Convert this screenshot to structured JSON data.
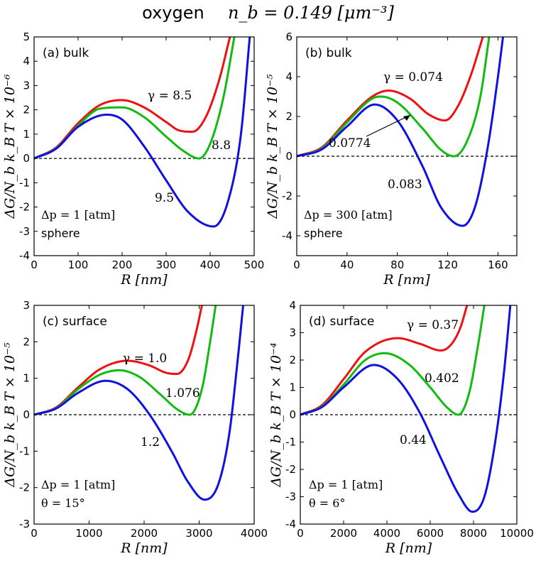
{
  "figure": {
    "title_word": "oxygen",
    "title_math": "n_b = 0.149 [μm⁻³]"
  },
  "colors": {
    "red": "#ee1111",
    "green": "#11bb11",
    "blue": "#1111dd",
    "zero_line": "#000000"
  },
  "chart_data": [
    {
      "type": "line",
      "panel": "a",
      "panel_label": "(a) bulk",
      "xlabel": "R [nm]",
      "ylabel": "ΔG/N_b k_B T × 10⁻⁶",
      "xlim": [
        0,
        500
      ],
      "ylim": [
        -4,
        5
      ],
      "xticks": [
        0,
        100,
        200,
        300,
        400,
        500
      ],
      "yticks": [
        -4,
        -3,
        -2,
        -1,
        0,
        1,
        2,
        3,
        4,
        5
      ],
      "annotations": [
        "Δp = 1 [atm]",
        "sphere"
      ],
      "curve_labels": [
        "γ = 8.5",
        "8.8",
        "9.5"
      ],
      "series": [
        {
          "label_text": "γ = 8.5",
          "color": "red",
          "x": [
            0,
            50,
            100,
            150,
            200,
            250,
            300,
            330,
            360,
            390,
            420,
            445
          ],
          "values": [
            0,
            0.45,
            1.45,
            2.2,
            2.4,
            2.1,
            1.5,
            1.15,
            1.1,
            1.7,
            3.2,
            5.0
          ]
        },
        {
          "label_text": "8.8",
          "color": "green",
          "x": [
            0,
            50,
            100,
            150,
            200,
            250,
            300,
            340,
            375,
            400,
            430,
            455
          ],
          "values": [
            0,
            0.42,
            1.35,
            2.05,
            2.1,
            1.7,
            0.9,
            0.3,
            0.0,
            0.6,
            2.5,
            5.0
          ]
        },
        {
          "label_text": "9.5",
          "color": "blue",
          "x": [
            0,
            50,
            100,
            165,
            200,
            250,
            300,
            350,
            408,
            440,
            470,
            490
          ],
          "values": [
            0,
            0.4,
            1.3,
            1.8,
            1.6,
            0.5,
            -0.9,
            -2.2,
            -2.8,
            -1.8,
            1.0,
            5.0
          ]
        }
      ]
    },
    {
      "type": "line",
      "panel": "b",
      "panel_label": "(b) bulk",
      "xlabel": "R [nm]",
      "ylabel": "ΔG/N_b k_B T × 10⁻⁵",
      "xlim": [
        0,
        175
      ],
      "ylim": [
        -5,
        6
      ],
      "xticks": [
        0,
        40,
        80,
        120,
        160
      ],
      "yticks": [
        -4,
        -2,
        0,
        2,
        4,
        6
      ],
      "annotations": [
        "Δp = 300 [atm]",
        "sphere"
      ],
      "curve_labels": [
        "γ = 0.074",
        "0.0774",
        "0.083"
      ],
      "series": [
        {
          "label_text": "γ = 0.074",
          "color": "red",
          "x": [
            0,
            20,
            40,
            60,
            73,
            90,
            105,
            118,
            128,
            138,
            148
          ],
          "values": [
            0,
            0.45,
            1.8,
            3.0,
            3.3,
            2.9,
            2.1,
            1.8,
            2.5,
            4.0,
            6.0
          ]
        },
        {
          "label_text": "0.0774",
          "color": "green",
          "x": [
            0,
            20,
            40,
            60,
            67,
            80,
            100,
            115,
            125,
            135,
            146,
            153
          ],
          "values": [
            0,
            0.4,
            1.7,
            2.9,
            3.0,
            2.7,
            1.4,
            0.3,
            0.0,
            0.7,
            3.0,
            6.0
          ]
        },
        {
          "label_text": "0.083",
          "color": "blue",
          "x": [
            0,
            20,
            40,
            62,
            80,
            100,
            115,
            132,
            142,
            152,
            160,
            164
          ],
          "values": [
            0,
            0.35,
            1.5,
            2.6,
            1.8,
            -0.5,
            -2.6,
            -3.5,
            -2.5,
            0.5,
            4.0,
            6.0
          ]
        }
      ]
    },
    {
      "type": "line",
      "panel": "c",
      "panel_label": "(c) surface",
      "xlabel": "R [nm]",
      "ylabel": "ΔG/N_b k_B T × 10⁻⁵",
      "xlim": [
        0,
        4000
      ],
      "ylim": [
        -3,
        3
      ],
      "xticks": [
        0,
        1000,
        2000,
        3000,
        4000
      ],
      "yticks": [
        -3,
        -2,
        -1,
        0,
        1,
        2,
        3
      ],
      "annotations": [
        "Δp = 1 [atm]",
        "θ = 15°"
      ],
      "curve_labels": [
        "γ = 1.0",
        "1.076",
        "1.2"
      ],
      "series": [
        {
          "label_text": "γ = 1.0",
          "color": "red",
          "x": [
            0,
            400,
            800,
            1200,
            1700,
            2100,
            2400,
            2600,
            2800,
            2950,
            3050
          ],
          "values": [
            0,
            0.2,
            0.75,
            1.25,
            1.48,
            1.35,
            1.15,
            1.12,
            1.5,
            2.3,
            3.0
          ]
        },
        {
          "label_text": "1.076",
          "color": "green",
          "x": [
            0,
            400,
            800,
            1200,
            1550,
            1900,
            2300,
            2600,
            2830,
            3050,
            3200,
            3300
          ],
          "values": [
            0,
            0.18,
            0.7,
            1.1,
            1.22,
            1.05,
            0.55,
            0.15,
            0.0,
            0.7,
            2.0,
            3.0
          ]
        },
        {
          "label_text": "1.2",
          "color": "blue",
          "x": [
            0,
            400,
            800,
            1300,
            1700,
            2100,
            2500,
            2800,
            3100,
            3350,
            3550,
            3700,
            3800
          ],
          "values": [
            0,
            0.17,
            0.6,
            0.93,
            0.7,
            0.0,
            -1.0,
            -1.85,
            -2.33,
            -1.9,
            -0.5,
            1.5,
            3.0
          ]
        }
      ]
    },
    {
      "type": "line",
      "panel": "d",
      "panel_label": "(d) surface",
      "xlabel": "R [nm]",
      "ylabel": "ΔG/N_b k_B T × 10⁻⁴",
      "xlim": [
        0,
        10000
      ],
      "ylim": [
        -4,
        4
      ],
      "xticks": [
        0,
        2000,
        4000,
        6000,
        8000,
        10000
      ],
      "yticks": [
        -4,
        -3,
        -2,
        -1,
        0,
        1,
        2,
        3,
        4
      ],
      "annotations": [
        "Δp = 1 [atm]",
        "θ = 6°"
      ],
      "curve_labels": [
        "γ = 0.37",
        "0.402",
        "0.44"
      ],
      "series": [
        {
          "label_text": "γ = 0.37",
          "color": "red",
          "x": [
            0,
            1000,
            2000,
            3000,
            4500,
            5500,
            6500,
            7000,
            7400,
            7700
          ],
          "values": [
            0,
            0.35,
            1.3,
            2.3,
            2.8,
            2.6,
            2.35,
            2.6,
            3.2,
            4.0
          ]
        },
        {
          "label_text": "0.402",
          "color": "green",
          "x": [
            0,
            1000,
            2000,
            3000,
            3900,
            5000,
            6000,
            6800,
            7300,
            7800,
            8200,
            8500
          ],
          "values": [
            0,
            0.3,
            1.1,
            2.0,
            2.25,
            1.85,
            1.0,
            0.25,
            0.0,
            0.8,
            2.5,
            4.0
          ]
        },
        {
          "label_text": "0.44",
          "color": "blue",
          "x": [
            0,
            1000,
            2000,
            3400,
            4500,
            5500,
            6500,
            7300,
            7950,
            8500,
            9000,
            9400,
            9700
          ],
          "values": [
            0,
            0.28,
            1.0,
            1.82,
            1.3,
            0.1,
            -1.6,
            -2.9,
            -3.55,
            -3.0,
            -1.0,
            1.5,
            4.0
          ]
        }
      ]
    }
  ]
}
